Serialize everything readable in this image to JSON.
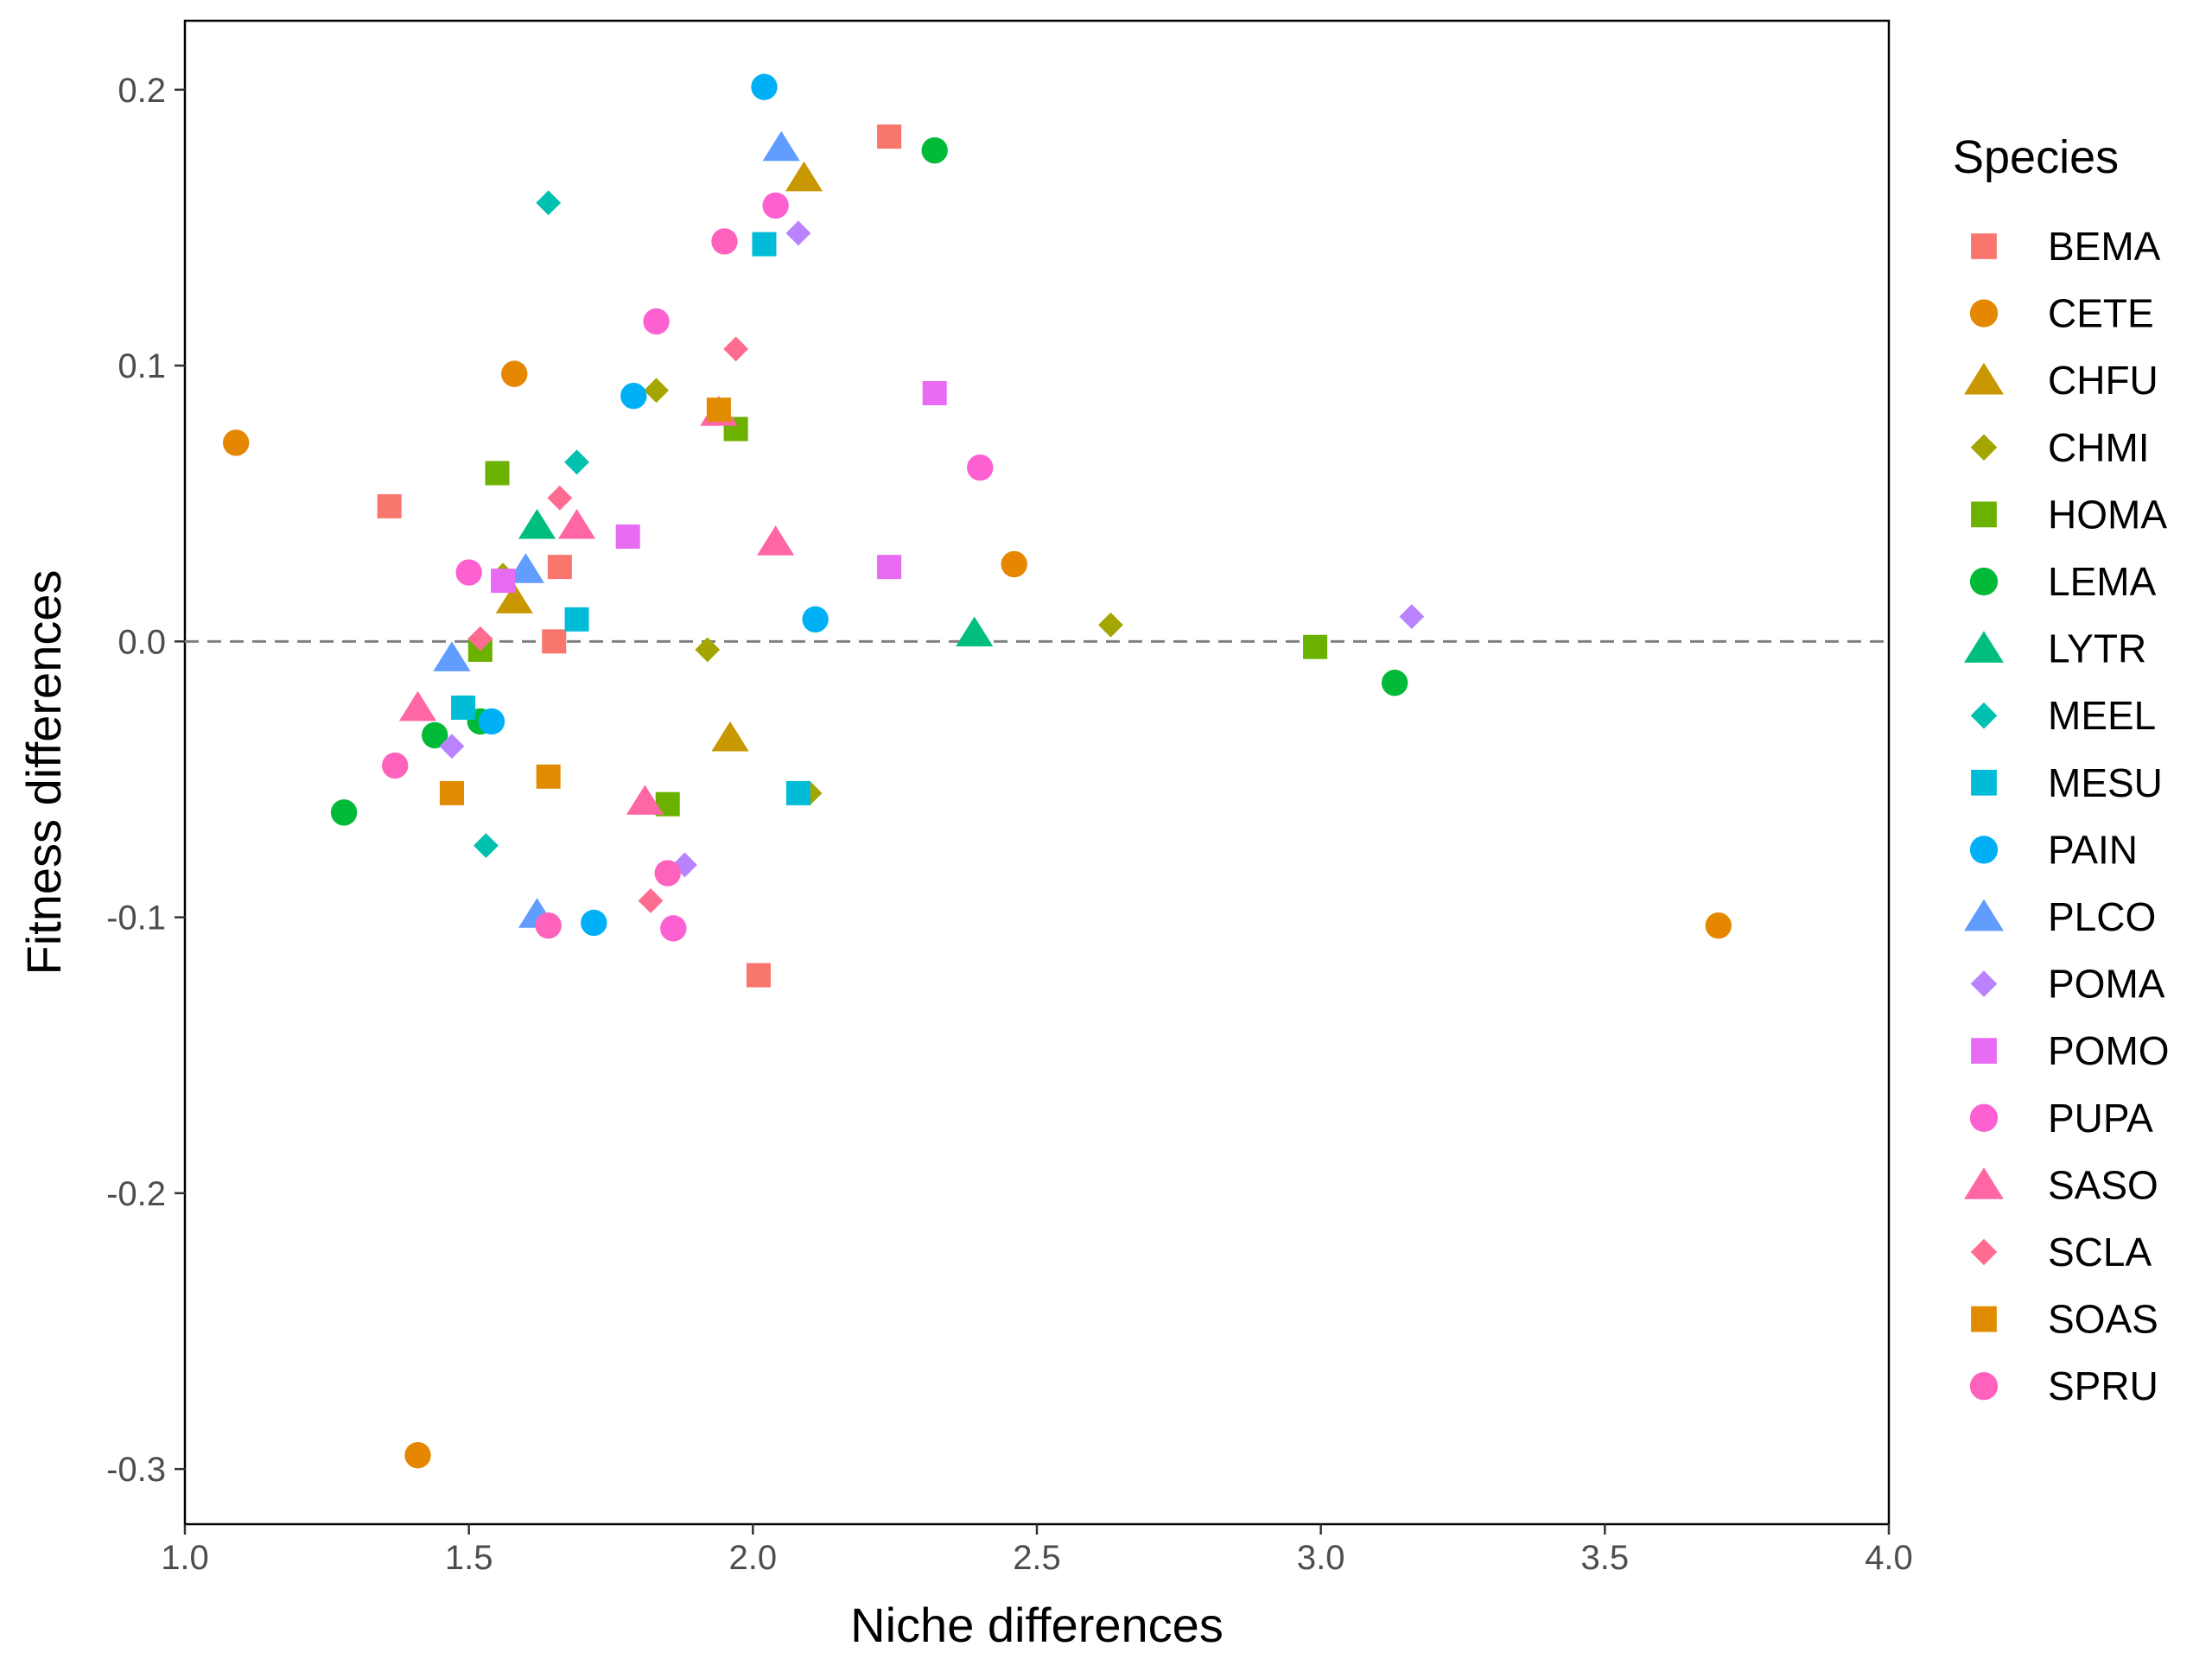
{
  "chart_data": {
    "type": "scatter",
    "xlabel": "Niche differences",
    "ylabel": "Fitness differences",
    "xlim": [
      1.0,
      4.0
    ],
    "ylim": [
      -0.32,
      0.225
    ],
    "x_ticks": [
      1.0,
      1.5,
      2.0,
      2.5,
      3.0,
      3.5,
      4.0
    ],
    "x_tick_labels": [
      "1.0",
      "1.5",
      "2.0",
      "2.5",
      "3.0",
      "3.5",
      "4.0"
    ],
    "y_ticks": [
      -0.3,
      -0.2,
      -0.1,
      0.0,
      0.1,
      0.2
    ],
    "y_tick_labels": [
      "-0.3",
      "-0.2",
      "-0.1",
      "0.0",
      "0.1",
      "0.2"
    ],
    "reference_line": {
      "y": 0.0,
      "style": "dashed",
      "color": "#808080"
    },
    "grid": false,
    "legend_title": "Species",
    "legend_position": "right",
    "series": [
      {
        "name": "BEMA",
        "shape": "square",
        "color": "#F8766D",
        "points": [
          [
            2.24,
            0.183
          ],
          [
            1.36,
            0.049
          ],
          [
            1.66,
            0.027
          ],
          [
            1.65,
            0.0
          ],
          [
            2.01,
            -0.121
          ]
        ]
      },
      {
        "name": "CETE",
        "shape": "circle",
        "color": "#E58700",
        "points": [
          [
            1.09,
            0.072
          ],
          [
            1.58,
            0.097
          ],
          [
            2.46,
            0.028
          ],
          [
            1.41,
            -0.295
          ],
          [
            3.7,
            -0.103
          ]
        ]
      },
      {
        "name": "CHFU",
        "shape": "triangle",
        "color": "#C99800",
        "points": [
          [
            2.09,
            0.168
          ],
          [
            1.58,
            0.015
          ],
          [
            1.96,
            -0.035
          ]
        ]
      },
      {
        "name": "CHMI",
        "shape": "diamond",
        "color": "#A3A500",
        "points": [
          [
            1.83,
            0.091
          ],
          [
            1.56,
            0.024
          ],
          [
            1.92,
            -0.003
          ],
          [
            2.63,
            0.006
          ],
          [
            2.1,
            -0.055
          ]
        ]
      },
      {
        "name": "HOMA",
        "shape": "square",
        "color": "#6BB100",
        "points": [
          [
            1.55,
            0.061
          ],
          [
            1.97,
            0.077
          ],
          [
            1.52,
            -0.003
          ],
          [
            1.85,
            -0.059
          ],
          [
            2.99,
            -0.002
          ]
        ]
      },
      {
        "name": "LEMA",
        "shape": "circle",
        "color": "#00BA38",
        "points": [
          [
            2.32,
            0.178
          ],
          [
            1.44,
            -0.034
          ],
          [
            1.52,
            -0.029
          ],
          [
            1.28,
            -0.062
          ],
          [
            3.13,
            -0.015
          ]
        ]
      },
      {
        "name": "LYTR",
        "shape": "triangle",
        "color": "#00BF7D",
        "points": [
          [
            1.62,
            0.042
          ],
          [
            2.39,
            0.003
          ]
        ]
      },
      {
        "name": "MEEL",
        "shape": "diamond",
        "color": "#00C0AF",
        "points": [
          [
            1.64,
            0.159
          ],
          [
            1.69,
            0.065
          ],
          [
            1.53,
            -0.074
          ]
        ]
      },
      {
        "name": "MESU",
        "shape": "square",
        "color": "#00BCD8",
        "points": [
          [
            2.02,
            0.144
          ],
          [
            1.69,
            0.008
          ],
          [
            1.49,
            -0.024
          ],
          [
            2.08,
            -0.055
          ]
        ]
      },
      {
        "name": "PAIN",
        "shape": "circle",
        "color": "#00B0F6",
        "points": [
          [
            2.02,
            0.201
          ],
          [
            1.79,
            0.089
          ],
          [
            2.11,
            0.008
          ],
          [
            1.54,
            -0.029
          ],
          [
            1.72,
            -0.102
          ]
        ]
      },
      {
        "name": "PLCO",
        "shape": "triangle",
        "color": "#619CFF",
        "points": [
          [
            2.05,
            0.179
          ],
          [
            1.6,
            0.026
          ],
          [
            1.47,
            -0.006
          ],
          [
            1.62,
            -0.099
          ]
        ]
      },
      {
        "name": "POMA",
        "shape": "diamond",
        "color": "#B983FF",
        "points": [
          [
            2.08,
            0.148
          ],
          [
            1.47,
            -0.038
          ],
          [
            1.88,
            -0.081
          ],
          [
            3.16,
            0.009
          ]
        ]
      },
      {
        "name": "POMO",
        "shape": "square",
        "color": "#E76BF3",
        "points": [
          [
            2.32,
            0.09
          ],
          [
            1.78,
            0.038
          ],
          [
            1.56,
            0.022
          ],
          [
            2.24,
            0.027
          ]
        ]
      },
      {
        "name": "PUPA",
        "shape": "circle",
        "color": "#FD61D1",
        "points": [
          [
            2.04,
            0.158
          ],
          [
            1.83,
            0.116
          ],
          [
            2.4,
            0.063
          ],
          [
            1.5,
            0.025
          ],
          [
            1.86,
            -0.104
          ]
        ]
      },
      {
        "name": "SASO",
        "shape": "triangle",
        "color": "#FF67A4",
        "points": [
          [
            1.94,
            0.083
          ],
          [
            1.69,
            0.042
          ],
          [
            2.04,
            0.036
          ],
          [
            1.41,
            -0.024
          ],
          [
            1.81,
            -0.058
          ]
        ]
      },
      {
        "name": "SCLA",
        "shape": "diamond",
        "color": "#FF6C91",
        "points": [
          [
            1.97,
            0.106
          ],
          [
            1.66,
            0.052
          ],
          [
            1.52,
            0.001
          ],
          [
            1.82,
            -0.094
          ]
        ]
      },
      {
        "name": "SOAS",
        "shape": "square",
        "color": "#E08B00",
        "points": [
          [
            1.94,
            0.084
          ],
          [
            1.47,
            -0.055
          ],
          [
            1.64,
            -0.049
          ]
        ]
      },
      {
        "name": "SPRU",
        "shape": "circle",
        "color": "#FF62BC",
        "points": [
          [
            1.95,
            0.145
          ],
          [
            1.37,
            -0.045
          ],
          [
            1.85,
            -0.084
          ],
          [
            1.64,
            -0.103
          ]
        ]
      }
    ]
  }
}
